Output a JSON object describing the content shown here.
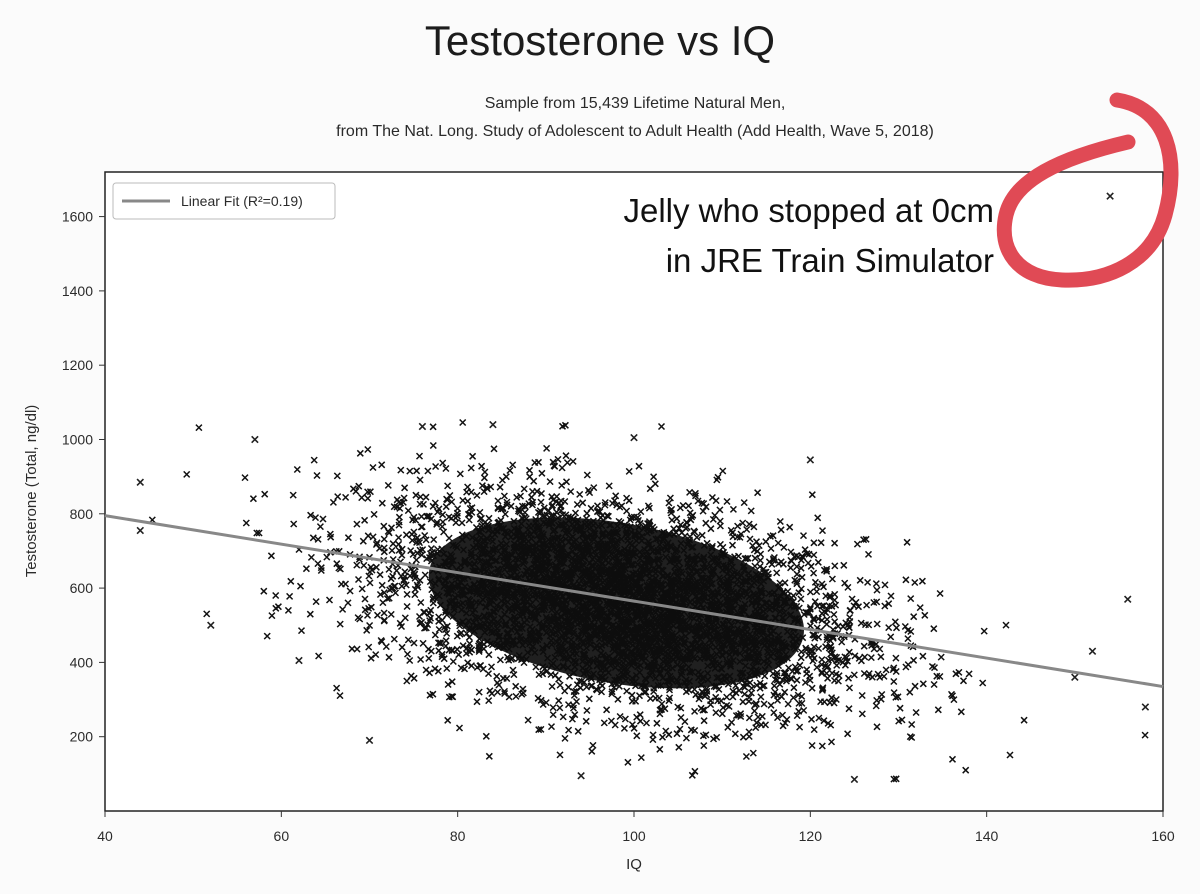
{
  "chart_data": {
    "type": "scatter",
    "title": "Testosterone vs IQ",
    "subtitle_lines": [
      "Sample from 15,439 Lifetime Natural Men,",
      "from The Nat. Long. Study of Adolescent to Adult Health (Add Health, Wave 5, 2018)"
    ],
    "xlabel": "IQ",
    "ylabel": "Testosterone (Total, ng/dl)",
    "xlim": [
      40,
      160
    ],
    "ylim": [
      0,
      1720
    ],
    "x_ticks": [
      "40",
      "60",
      "80",
      "100",
      "120",
      "140",
      "160"
    ],
    "y_ticks": [
      "200",
      "400",
      "600",
      "800",
      "1000",
      "1200",
      "1400",
      "1600"
    ],
    "x_tick_values": [
      40,
      60,
      80,
      100,
      120,
      140,
      160
    ],
    "y_tick_values": [
      200,
      400,
      600,
      800,
      1000,
      1200,
      1400,
      1600
    ],
    "grid": false,
    "legend_position": "top-left",
    "marker": "x",
    "series": [
      {
        "name": "Linear Fit (R²=0.19)",
        "kind": "line",
        "color": "#888888",
        "x": [
          40,
          160
        ],
        "y": [
          795,
          335
        ]
      }
    ],
    "cloud": {
      "description_values": {
        "n_points": 15439,
        "x_mean": 98,
        "x_sd": 14,
        "y_mean": 560,
        "y_sd": 150
      }
    },
    "outliers": [
      {
        "x": 154,
        "y": 1655
      },
      {
        "x": 44,
        "y": 885
      },
      {
        "x": 44,
        "y": 755
      },
      {
        "x": 52,
        "y": 500
      },
      {
        "x": 62,
        "y": 405
      },
      {
        "x": 70,
        "y": 190
      },
      {
        "x": 94,
        "y": 95
      },
      {
        "x": 125,
        "y": 85
      },
      {
        "x": 158,
        "y": 280
      },
      {
        "x": 156,
        "y": 570
      },
      {
        "x": 152,
        "y": 430
      },
      {
        "x": 150,
        "y": 360
      },
      {
        "x": 57,
        "y": 1000
      },
      {
        "x": 76,
        "y": 1035
      },
      {
        "x": 84,
        "y": 1040
      },
      {
        "x": 100,
        "y": 1005
      },
      {
        "x": 120,
        "y": 945
      }
    ],
    "annotation": {
      "lines": [
        "Jelly who stopped at 0cm",
        "in JRE Train Simulator"
      ],
      "circle_color": "#e04a55"
    }
  }
}
